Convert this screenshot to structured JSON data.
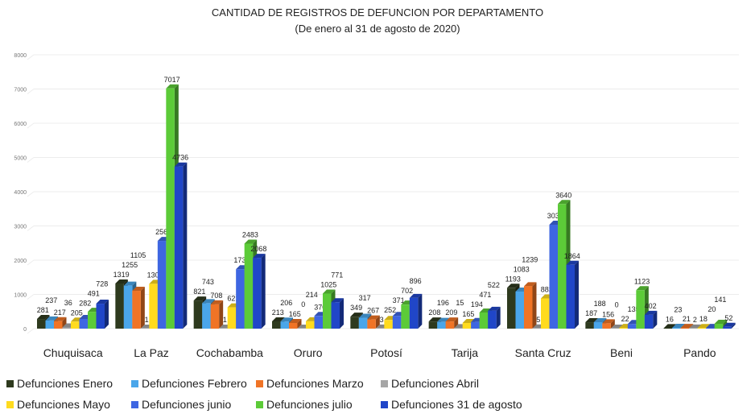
{
  "chart_data": {
    "type": "bar",
    "title": "CANTIDAD DE REGISTROS DE DEFUNCION POR DEPARTAMENTO",
    "subtitle": "(De enero al 31  de agosto de 2020)",
    "xlabel": "",
    "ylabel": "",
    "ylim": [
      0,
      8000
    ],
    "yticks": [
      0,
      1000,
      2000,
      3000,
      4000,
      5000,
      6000,
      7000,
      8000
    ],
    "grid": true,
    "legend_position": "bottom",
    "style": "3d-clustered-column",
    "categories": [
      "Chuquisaca",
      "La Paz",
      "Cochabamba",
      "Oruro",
      "Potosí",
      "Tarija",
      "Santa Cruz",
      "Beni",
      "Pando"
    ],
    "series": [
      {
        "name": "Defunciones Enero",
        "color": "#2e3a1e",
        "values": [
          281,
          1319,
          821,
          213,
          349,
          208,
          1193,
          187,
          16
        ]
      },
      {
        "name": "Defunciones Febrero",
        "color": "#4aa6ea",
        "values": [
          237,
          1255,
          743,
          206,
          317,
          196,
          1083,
          188,
          23
        ]
      },
      {
        "name": "Defunciones Marzo",
        "color": "#f07426",
        "values": [
          217,
          1105,
          708,
          165,
          267,
          209,
          1239,
          156,
          21
        ]
      },
      {
        "name": "Defunciones Abril",
        "color": "#a6a6a6",
        "values": [
          36,
          1,
          1,
          0,
          3,
          15,
          5,
          0,
          2
        ]
      },
      {
        "name": "Defunciones Mayo",
        "color": "#ffdb1e",
        "values": [
          205,
          1308,
          621,
          214,
          252,
          165,
          883,
          22,
          18
        ]
      },
      {
        "name": "Defunciones junio",
        "color": "#3e66e2",
        "values": [
          282,
          2563,
          1736,
          370,
          371,
          194,
          3036,
          135,
          20
        ]
      },
      {
        "name": "Defunciones julio",
        "color": "#5ccb38",
        "values": [
          491,
          7017,
          2483,
          1025,
          702,
          471,
          3640,
          1123,
          141
        ]
      },
      {
        "name": "Defunciones 31 de agosto",
        "color": "#2046c8",
        "values": [
          728,
          4736,
          2068,
          771,
          896,
          522,
          1864,
          402,
          52
        ]
      }
    ]
  }
}
